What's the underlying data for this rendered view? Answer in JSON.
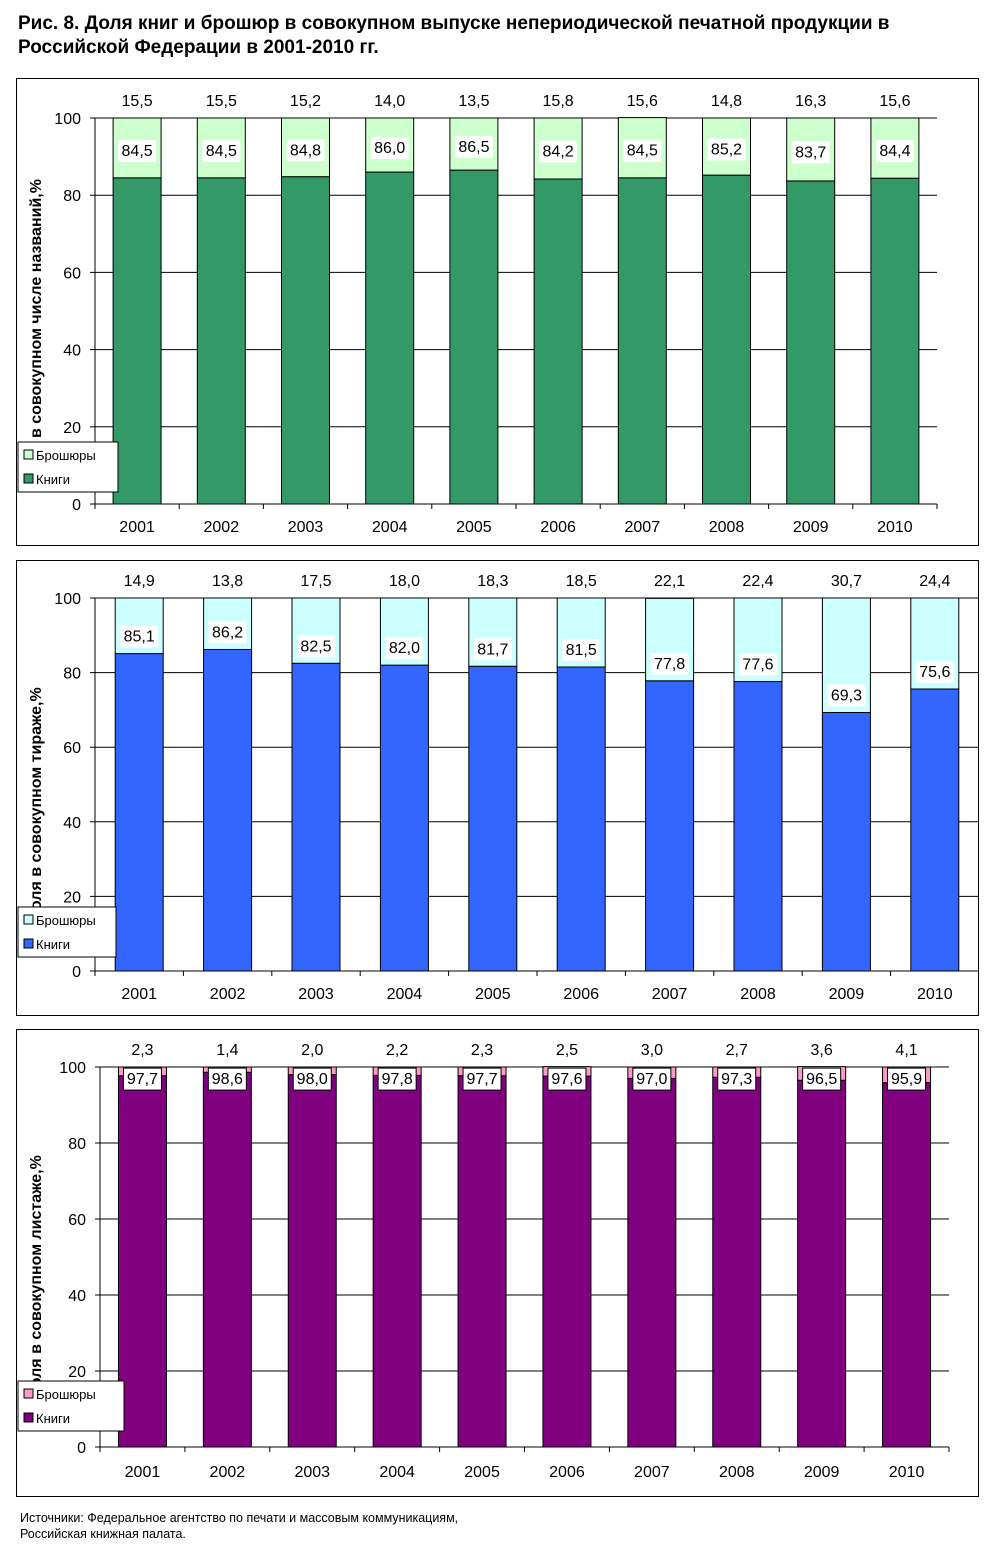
{
  "title": "Рис. 8. Доля книг и брошюр в совокупном выпуске непериодической печатной продукции в Российской Федерации в 2001-2010 гг.",
  "source": {
    "line1": "Источники: Федеральное агентство по печати и массовым коммуникациям,",
    "line2": "Российская книжная палата."
  },
  "colors": {
    "books": [
      "#339966",
      "#3366ff",
      "#800080"
    ],
    "brochures": [
      "#ccffcc",
      "#ccffff",
      "#ff99cc"
    ]
  },
  "chart_data": [
    {
      "type": "bar",
      "stacked": true,
      "ylabel": "Доля в совокупном числе названий,%",
      "ylim": [
        0,
        100
      ],
      "yticks": [
        0,
        20,
        40,
        60,
        80,
        100
      ],
      "categories": [
        "2001",
        "2002",
        "2003",
        "2004",
        "2005",
        "2006",
        "2007",
        "2008",
        "2009",
        "2010"
      ],
      "series": [
        {
          "name": "Книги",
          "values": [
            84.5,
            84.5,
            84.8,
            86.0,
            86.5,
            84.2,
            84.5,
            85.2,
            83.7,
            84.4
          ],
          "labels": [
            "84,5",
            "84,5",
            "84,8",
            "86,0",
            "86,5",
            "84,2",
            "84,5",
            "85,2",
            "83,7",
            "84,4"
          ]
        },
        {
          "name": "Брошюры",
          "values": [
            15.5,
            15.5,
            15.2,
            14.0,
            13.5,
            15.8,
            15.6,
            14.8,
            16.3,
            15.6
          ],
          "labels": [
            "15,5",
            "15,5",
            "15,2",
            "14,0",
            "13,5",
            "15,8",
            "15,6",
            "14,8",
            "16,3",
            "15,6"
          ]
        }
      ],
      "legend": [
        "Брошюры",
        "Книги"
      ],
      "legend_position": "bottom-left"
    },
    {
      "type": "bar",
      "stacked": true,
      "ylabel": "Доля в совокупном тираже,%",
      "ylim": [
        0,
        100
      ],
      "yticks": [
        0,
        20,
        40,
        60,
        80,
        100
      ],
      "categories": [
        "2001",
        "2002",
        "2003",
        "2004",
        "2005",
        "2006",
        "2007",
        "2008",
        "2009",
        "2010"
      ],
      "series": [
        {
          "name": "Книги",
          "values": [
            85.1,
            86.2,
            82.5,
            82.0,
            81.7,
            81.5,
            77.8,
            77.6,
            69.3,
            75.6
          ],
          "labels": [
            "85,1",
            "86,2",
            "82,5",
            "82,0",
            "81,7",
            "81,5",
            "77,8",
            "77,6",
            "69,3",
            "75,6"
          ]
        },
        {
          "name": "Брошюры",
          "values": [
            14.9,
            13.8,
            17.5,
            18.0,
            18.3,
            18.5,
            22.1,
            22.4,
            30.7,
            24.4
          ],
          "labels": [
            "14,9",
            "13,8",
            "17,5",
            "18,0",
            "18,3",
            "18,5",
            "22,1",
            "22,4",
            "30,7",
            "24,4"
          ]
        }
      ],
      "legend": [
        "Брошюры",
        "Книги"
      ],
      "legend_position": "bottom-left"
    },
    {
      "type": "bar",
      "stacked": true,
      "ylabel": "Доля в совокупном листаже,%",
      "ylim": [
        0,
        100
      ],
      "yticks": [
        0,
        20,
        40,
        60,
        80,
        100
      ],
      "categories": [
        "2001",
        "2002",
        "2003",
        "2004",
        "2005",
        "2006",
        "2007",
        "2008",
        "2009",
        "2010"
      ],
      "series": [
        {
          "name": "Книги",
          "values": [
            97.7,
            98.6,
            98.0,
            97.8,
            97.7,
            97.6,
            97.0,
            97.3,
            96.5,
            95.9
          ],
          "labels": [
            "97,7",
            "98,6",
            "98,0",
            "97,8",
            "97,7",
            "97,6",
            "97,0",
            "97,3",
            "96,5",
            "95,9"
          ]
        },
        {
          "name": "Брошюры",
          "values": [
            2.3,
            1.4,
            2.0,
            2.2,
            2.3,
            2.5,
            3.0,
            2.7,
            3.6,
            4.1
          ],
          "labels": [
            "2,3",
            "1,4",
            "2,0",
            "2,2",
            "2,3",
            "2,5",
            "3,0",
            "2,7",
            "3,6",
            "4,1"
          ]
        }
      ],
      "legend": [
        "Брошюры",
        "Книги"
      ],
      "legend_position": "bottom-left"
    }
  ]
}
